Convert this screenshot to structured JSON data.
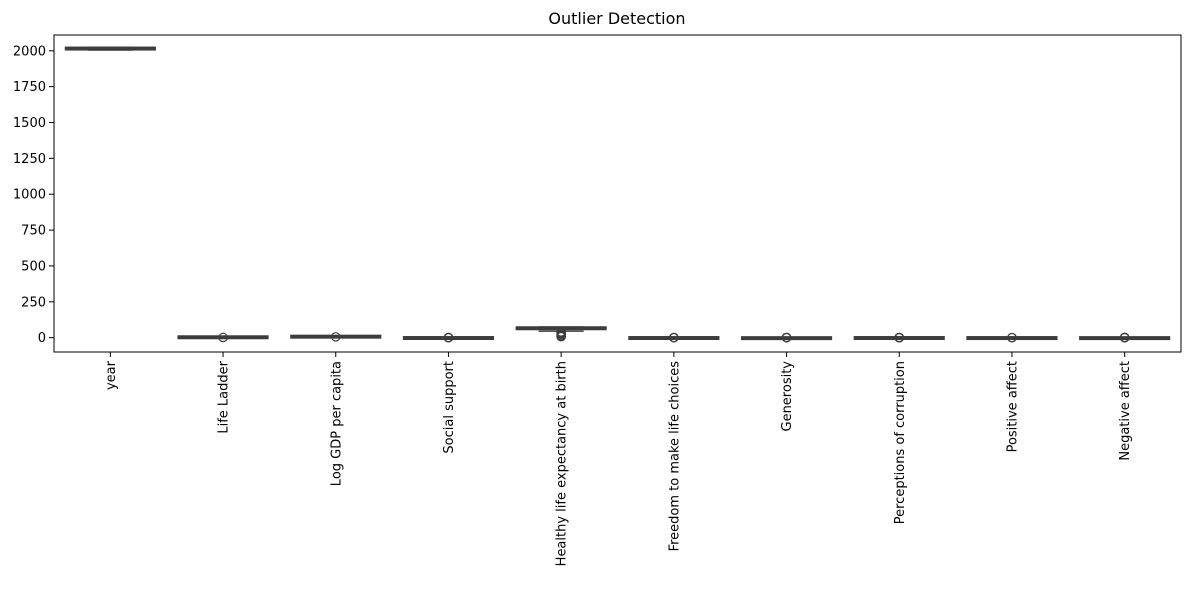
{
  "chart_data": {
    "type": "box",
    "title": "Outlier Detection",
    "xlabel": "",
    "ylabel": "",
    "ylim": [
      -100,
      2110
    ],
    "yticks": [
      0,
      250,
      500,
      750,
      1000,
      1250,
      1500,
      1750,
      2000
    ],
    "ytick_labels": [
      "0",
      "250",
      "500",
      "750",
      "1000",
      "1250",
      "1500",
      "1750",
      "2000"
    ],
    "grid": false,
    "legend": "none",
    "box_color": "#3d3d3d",
    "categories": [
      "year",
      "Life Ladder",
      "Log GDP per capita",
      "Social support",
      "Healthy life expectancy at birth",
      "Freedom to make life choices",
      "Generosity",
      "Perceptions of corruption",
      "Positive affect",
      "Negative affect"
    ],
    "boxes": [
      {
        "min": 2005,
        "q1": 2010,
        "median": 2015,
        "q3": 2019,
        "max": 2023,
        "outliers": []
      },
      {
        "min": 2.2,
        "q1": 4.6,
        "median": 5.4,
        "q3": 6.2,
        "max": 8.0,
        "outliers": [
          1.3
        ]
      },
      {
        "min": 6.6,
        "q1": 8.4,
        "median": 9.5,
        "q3": 10.4,
        "max": 11.7,
        "outliers": [
          5.5
        ]
      },
      {
        "min": 0.48,
        "q1": 0.74,
        "median": 0.84,
        "q3": 0.9,
        "max": 0.99,
        "outliers": [
          0.23,
          0.3,
          0.38,
          0.44
        ]
      },
      {
        "min": 45,
        "q1": 59,
        "median": 65,
        "q3": 69,
        "max": 75,
        "outliers": [
          6.7,
          12,
          20,
          28,
          35,
          40
        ]
      },
      {
        "min": 0.4,
        "q1": 0.66,
        "median": 0.77,
        "q3": 0.86,
        "max": 0.99,
        "outliers": [
          0.23,
          0.29,
          0.35
        ]
      },
      {
        "min": -0.34,
        "q1": -0.11,
        "median": -0.02,
        "q3": 0.09,
        "max": 0.4,
        "outliers": [
          0.5,
          0.6,
          0.7
        ]
      },
      {
        "min": 0.42,
        "q1": 0.69,
        "median": 0.8,
        "q3": 0.87,
        "max": 0.98,
        "outliers": [
          0.03,
          0.1,
          0.18,
          0.26,
          0.33
        ]
      },
      {
        "min": 0.3,
        "q1": 0.57,
        "median": 0.66,
        "q3": 0.74,
        "max": 0.88,
        "outliers": [
          0.18,
          0.23
        ]
      },
      {
        "min": 0.08,
        "q1": 0.21,
        "median": 0.26,
        "q3": 0.32,
        "max": 0.5,
        "outliers": [
          0.55,
          0.6,
          0.65,
          0.7
        ]
      }
    ]
  }
}
